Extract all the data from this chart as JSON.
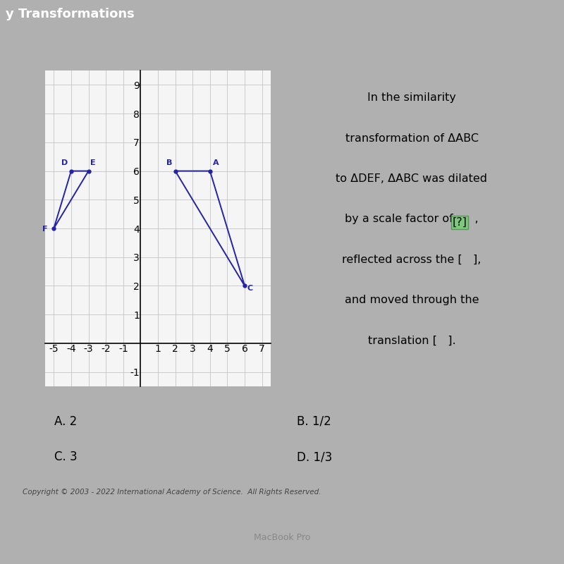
{
  "title_bar_text": "y Transformations",
  "title_bar_color": "#2b5797",
  "title_bar_text_color": "#ffffff",
  "outer_bg": "#b0b0b0",
  "card_bg": "#e0dede",
  "graph_bg": "#f5f5f5",
  "triangle_ABC": {
    "A": [
      4,
      6
    ],
    "B": [
      2,
      6
    ],
    "C": [
      6,
      2
    ]
  },
  "triangle_DEF": {
    "D": [
      -4,
      6
    ],
    "E": [
      -3,
      6
    ],
    "F": [
      -5,
      4
    ]
  },
  "triangle_color": "#2222aa",
  "label_color": "#2222aa",
  "xlim": [
    -5.5,
    7.5
  ],
  "ylim": [
    -1.5,
    9.5
  ],
  "xtick_labels": [
    "-5",
    "-4",
    "-3",
    "-2",
    "-1",
    "1",
    "2",
    "3",
    "4",
    "5",
    "6",
    "7"
  ],
  "xtick_vals": [
    -5,
    -4,
    -3,
    -2,
    -1,
    1,
    2,
    3,
    4,
    5,
    6,
    7
  ],
  "ytick_labels": [
    "-1",
    "1",
    "2",
    "3",
    "4",
    "5",
    "6",
    "7",
    "8",
    "9"
  ],
  "ytick_vals": [
    -1,
    1,
    2,
    3,
    4,
    5,
    6,
    7,
    8,
    9
  ],
  "question_lines": [
    "In the similarity",
    "transformation of ΔABC",
    "to ΔDEF, ΔABC was dilated",
    "by a scale factor of [?],",
    "reflected across the [   ],",
    "and moved through the",
    "translation [   ]."
  ],
  "highlight_color": "#7ec87e",
  "highlight_border": "#559955",
  "choice_A": "A. 2",
  "choice_B": "B. 1/2",
  "choice_C": "C. 3",
  "choice_D": "D. 1/3",
  "choice_bg": "#c8c8c8",
  "choice_bg2": "#d0d0d0",
  "footer_text": "Copyright © 2003 - 2022 International Academy of Science.  All Rights Reserved.",
  "footer_color": "#444444",
  "macbook_bar_color": "#555555"
}
